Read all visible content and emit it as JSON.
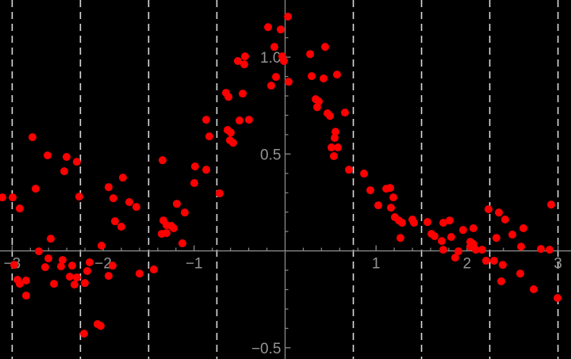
{
  "chart_data": {
    "type": "scatter",
    "title": "",
    "xlabel": "",
    "ylabel": "",
    "xlim": [
      -3.134,
      3.143
    ],
    "ylim": [
      -0.558,
      1.295
    ],
    "grid": "vertical-dashed",
    "legend": "none",
    "background_color": "#000000",
    "point_color": "#ff0000",
    "axis_color": "#8a8a8a",
    "tick_label_color": "#949494",
    "gridline_color": "#d9d9d9",
    "x_gridlines": [
      -3,
      -2.25,
      -1.5,
      -0.75,
      0.75,
      1.5,
      2.25,
      3
    ],
    "x_major_ticks": [
      {
        "value": -3,
        "label": "−3"
      },
      {
        "value": -2,
        "label": "−2"
      },
      {
        "value": -1,
        "label": "−1"
      },
      {
        "value": 1,
        "label": "1"
      },
      {
        "value": 2,
        "label": "2"
      },
      {
        "value": 3,
        "label": "3"
      }
    ],
    "y_major_ticks": [
      {
        "value": 1.0,
        "label": "1.0"
      },
      {
        "value": 0.5,
        "label": "0.5"
      },
      {
        "value": -0.5,
        "label": "−0.5"
      }
    ],
    "x_minor_step": 0.2,
    "x_minor_range": [
      -3,
      3
    ],
    "y_minor_step": 0.1,
    "y_minor_range": [
      -0.5,
      1.2
    ],
    "points": [
      [
        0.031,
        1.209
      ],
      [
        -0.187,
        1.155
      ],
      [
        -0.048,
        1.143
      ],
      [
        -0.118,
        1.053
      ],
      [
        0.44,
        1.053
      ],
      [
        0.275,
        1.016
      ],
      [
        -0.031,
        1.004
      ],
      [
        -0.013,
        0.98
      ],
      [
        -0.519,
        0.98
      ],
      [
        -0.44,
        1.004
      ],
      [
        -0.449,
        0.963
      ],
      [
        -0.1,
        0.898
      ],
      [
        0.292,
        0.902
      ],
      [
        0.423,
        0.89
      ],
      [
        0.571,
        0.91
      ],
      [
        0.039,
        0.873
      ],
      [
        -0.153,
        0.853
      ],
      [
        -0.65,
        0.816
      ],
      [
        -0.623,
        0.795
      ],
      [
        -0.466,
        0.812
      ],
      [
        0.336,
        0.783
      ],
      [
        0.371,
        0.771
      ],
      [
        0.353,
        0.742
      ],
      [
        0.466,
        0.71
      ],
      [
        0.493,
        0.697
      ],
      [
        0.658,
        0.714
      ],
      [
        -0.867,
        0.677
      ],
      [
        -0.397,
        0.677
      ],
      [
        -0.501,
        0.673
      ],
      [
        -0.833,
        0.591
      ],
      [
        -0.632,
        0.624
      ],
      [
        -0.597,
        0.611
      ],
      [
        -0.606,
        0.571
      ],
      [
        -0.571,
        0.558
      ],
      [
        -0.99,
        0.436
      ],
      [
        -0.867,
        0.419
      ],
      [
        -0.998,
        0.35
      ],
      [
        -0.719,
        0.297
      ],
      [
        0.554,
        0.615
      ],
      [
        0.545,
        0.583
      ],
      [
        0.51,
        0.534
      ],
      [
        0.58,
        0.534
      ],
      [
        0.536,
        0.489
      ],
      [
        0.702,
        0.419
      ],
      [
        0.868,
        0.399
      ],
      [
        0.937,
        0.313
      ],
      [
        1.024,
        0.235
      ],
      [
        -2.777,
        0.587
      ],
      [
        -2.611,
        0.493
      ],
      [
        -2.402,
        0.485
      ],
      [
        -2.289,
        0.46
      ],
      [
        -2.428,
        0.411
      ],
      [
        -2.742,
        0.321
      ],
      [
        -3.108,
        0.276
      ],
      [
        -2.995,
        0.276
      ],
      [
        -2.263,
        0.28
      ],
      [
        -2.917,
        0.219
      ],
      [
        -1.94,
        0.329
      ],
      [
        -1.783,
        0.378
      ],
      [
        -1.888,
        0.272
      ],
      [
        -1.713,
        0.252
      ],
      [
        -1.635,
        0.227
      ],
      [
        -1.87,
        0.153
      ],
      [
        -1.8,
        0.125
      ],
      [
        -1.347,
        0.468
      ],
      [
        -1.19,
        0.243
      ],
      [
        -1.103,
        0.198
      ],
      [
        -1.338,
        0.157
      ],
      [
        -1.303,
        0.133
      ],
      [
        -1.251,
        0.129
      ],
      [
        -1.225,
        0.117
      ],
      [
        -1.356,
        0.088
      ],
      [
        -1.303,
        0.092
      ],
      [
        -2.576,
        0.063
      ],
      [
        1.112,
        0.321
      ],
      [
        1.155,
        0.325
      ],
      [
        1.19,
        0.276
      ],
      [
        1.164,
        0.223
      ],
      [
        1.207,
        0.174
      ],
      [
        1.251,
        0.157
      ],
      [
        1.286,
        0.145
      ],
      [
        1.399,
        0.162
      ],
      [
        1.417,
        0.145
      ],
      [
        1.268,
        0.067
      ],
      [
        1.565,
        0.149
      ],
      [
        1.609,
        0.088
      ],
      [
        1.643,
        0.076
      ],
      [
        1.722,
        0.051
      ],
      [
        1.739,
        0.145
      ],
      [
        1.809,
        0.157
      ],
      [
        1.826,
        0.072
      ],
      [
        1.957,
        0.108
      ],
      [
        2.07,
        0.117
      ],
      [
        2.236,
        0.215
      ],
      [
        2.35,
        0.198
      ],
      [
        2.419,
        0.162
      ],
      [
        2.323,
        0.067
      ],
      [
        2.498,
        0.084
      ],
      [
        2.62,
        0.117
      ],
      [
        2.925,
        0.239
      ],
      [
        -2.707,
        -0.002
      ],
      [
        -2.602,
        -0.039
      ],
      [
        -2.637,
        -0.084
      ],
      [
        -2.977,
        -0.072
      ],
      [
        -2.446,
        -0.047
      ],
      [
        -2.463,
        -0.08
      ],
      [
        -2.341,
        -0.076
      ],
      [
        -2.367,
        -0.133
      ],
      [
        -2.289,
        -0.137
      ],
      [
        -2.315,
        -0.174
      ],
      [
        -2.541,
        -0.17
      ],
      [
        -2.201,
        -0.166
      ],
      [
        -2.149,
        -0.059
      ],
      [
        -2.175,
        -0.104
      ],
      [
        -2.018,
        0.027
      ],
      [
        -1.896,
        -0.076
      ],
      [
        -1.94,
        -0.129
      ],
      [
        -1.6,
        -0.117
      ],
      [
        -1.443,
        -0.096
      ],
      [
        -2.942,
        -0.149
      ],
      [
        -2.917,
        -0.17
      ],
      [
        -2.847,
        -0.153
      ],
      [
        -2.847,
        -0.231
      ],
      [
        -2.062,
        -0.378
      ],
      [
        -2.027,
        -0.387
      ],
      [
        -2.21,
        -0.427
      ],
      [
        -1.129,
        0.039
      ],
      [
        1.739,
        0.006
      ],
      [
        2.036,
        0.047
      ],
      [
        2.07,
        0.035
      ],
      [
        2.036,
        0.022
      ],
      [
        2.097,
        0.006
      ],
      [
        2.166,
        0.006
      ],
      [
        1.905,
        -0.002
      ],
      [
        1.87,
        -0.035
      ],
      [
        2.21,
        -0.051
      ],
      [
        2.297,
        -0.051
      ],
      [
        2.393,
        -0.072
      ],
      [
        2.376,
        -0.157
      ],
      [
        2.585,
        -0.117
      ],
      [
        2.594,
        0.022
      ],
      [
        2.812,
        0.01
      ],
      [
        2.908,
        0.006
      ],
      [
        2.733,
        -0.198
      ],
      [
        2.995,
        -0.243
      ]
    ]
  }
}
